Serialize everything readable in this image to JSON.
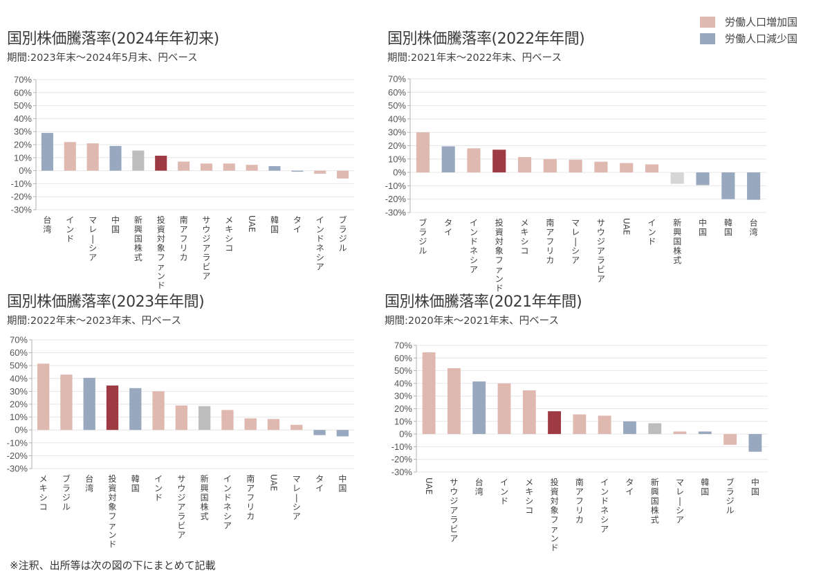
{
  "legend": {
    "items": [
      {
        "label": "労働人口増加国",
        "color": "#dfb8b0"
      },
      {
        "label": "労働人口減少国",
        "color": "#98a9bf"
      }
    ]
  },
  "footnote": "※注釈、出所等は次の図の下にまとめて記載",
  "colors": {
    "increase": "#dfb8b0",
    "decrease": "#98a9bf",
    "fund": "#9e3a43",
    "emerging_index_2024": "#bdbdbd",
    "emerging_index_other": "#d6d6d6",
    "grid": "#e6e6e6",
    "axis": "#b0b0b0"
  },
  "chart_data": [
    {
      "type": "bar",
      "title": "国別株価騰落率(2024年年初来)",
      "subtitle": "期間:2023年末～2024年5月末、円ベース",
      "xlabel": "",
      "ylabel": "",
      "ylim": [
        -30,
        70
      ],
      "yticks": [
        "70%",
        "60%",
        "50%",
        "40%",
        "30%",
        "20%",
        "10%",
        "0%",
        "-10%",
        "-20%",
        "-30%"
      ],
      "grid": true,
      "categories": [
        "台湾",
        "インド",
        "マレーシア",
        "中国",
        "新興国株式",
        "投資対象ファンド",
        "南アフリカ",
        "サウジアラビア",
        "メキシコ",
        "UAE",
        "韓国",
        "タイ",
        "インドネシア",
        "ブラジル"
      ],
      "values": [
        29,
        22,
        21,
        19,
        15.5,
        11.5,
        7,
        5.5,
        5.5,
        4.5,
        3.5,
        -0.8,
        -2.3,
        -6
      ],
      "groups": [
        "decrease",
        "increase",
        "increase",
        "decrease",
        "emerging_index_2024",
        "fund",
        "increase",
        "increase",
        "increase",
        "increase",
        "decrease",
        "decrease",
        "increase",
        "increase"
      ]
    },
    {
      "type": "bar",
      "title": "国別株価騰落率(2022年年間)",
      "subtitle": "期間:2021年末～2022年末、円ベース",
      "xlabel": "",
      "ylabel": "",
      "ylim": [
        -30,
        70
      ],
      "yticks": [
        "70%",
        "60%",
        "50%",
        "40%",
        "30%",
        "20%",
        "10%",
        "0%",
        "-10%",
        "-20%",
        "-30%"
      ],
      "grid": true,
      "categories": [
        "ブラジル",
        "タイ",
        "インドネシア",
        "投資対象ファンド",
        "メキシコ",
        "南アフリカ",
        "マレーシア",
        "サウジアラビア",
        "UAE",
        "インド",
        "新興国株式",
        "中国",
        "韓国",
        "台湾"
      ],
      "values": [
        30,
        19.5,
        18,
        17,
        11.5,
        10,
        9.5,
        8,
        7,
        6,
        -8.5,
        -9.5,
        -20,
        -20.5
      ],
      "groups": [
        "increase",
        "decrease",
        "increase",
        "fund",
        "increase",
        "increase",
        "increase",
        "increase",
        "increase",
        "increase",
        "emerging_index_other",
        "decrease",
        "decrease",
        "decrease"
      ]
    },
    {
      "type": "bar",
      "title": "国別株価騰落率(2023年年間)",
      "subtitle": "期間:2022年末～2023年末、円ベース",
      "xlabel": "",
      "ylabel": "",
      "ylim": [
        -30,
        70
      ],
      "yticks": [
        "70%",
        "60%",
        "50%",
        "40%",
        "30%",
        "20%",
        "10%",
        "0%",
        "-10%",
        "-20%",
        "-30%"
      ],
      "grid": true,
      "categories": [
        "メキシコ",
        "ブラジル",
        "台湾",
        "投資対象ファンド",
        "韓国",
        "インド",
        "サウジアラビア",
        "新興国株式",
        "インドネシア",
        "南アフリカ",
        "UAE",
        "マレーシア",
        "タイ",
        "中国"
      ],
      "values": [
        51.5,
        43,
        40.5,
        34.5,
        32.5,
        30,
        19,
        18.5,
        15.5,
        9,
        8.5,
        4,
        -4,
        -5
      ],
      "groups": [
        "increase",
        "increase",
        "decrease",
        "fund",
        "decrease",
        "increase",
        "increase",
        "emerging_index_2024",
        "increase",
        "increase",
        "increase",
        "increase",
        "decrease",
        "decrease"
      ]
    },
    {
      "type": "bar",
      "title": "国別株価騰落率(2021年年間)",
      "subtitle": "期間:2020年末～2021年末、円ベース",
      "xlabel": "",
      "ylabel": "",
      "ylim": [
        -30,
        70
      ],
      "yticks": [
        "70%",
        "60%",
        "50%",
        "40%",
        "30%",
        "20%",
        "10%",
        "0%",
        "-10%",
        "-20%",
        "-30%"
      ],
      "grid": true,
      "categories": [
        "UAE",
        "サウジアラビア",
        "台湾",
        "インド",
        "メキシコ",
        "投資対象ファンド",
        "南アフリカ",
        "インドネシア",
        "タイ",
        "新興国株式",
        "マレーシア",
        "韓国",
        "ブラジル",
        "中国"
      ],
      "values": [
        64.5,
        52,
        41.5,
        40,
        34.5,
        18,
        15.5,
        14.5,
        10,
        8.5,
        2,
        2,
        -8.5,
        -14
      ],
      "groups": [
        "increase",
        "increase",
        "decrease",
        "increase",
        "increase",
        "fund",
        "increase",
        "increase",
        "decrease",
        "emerging_index_2024",
        "increase",
        "decrease",
        "increase",
        "decrease"
      ]
    }
  ]
}
